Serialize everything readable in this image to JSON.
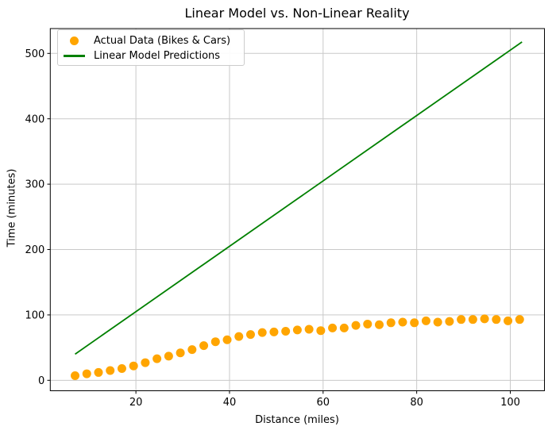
{
  "chart_data": {
    "type": "scatter",
    "title": "Linear Model vs. Non-Linear Reality",
    "xlabel": "Distance (miles)",
    "ylabel": "Time (minutes)",
    "xlim": [
      1.7,
      107.3
    ],
    "ylim": [
      -16,
      538
    ],
    "xticks": [
      20,
      40,
      60,
      80,
      100
    ],
    "yticks": [
      0,
      100,
      200,
      300,
      400,
      500
    ],
    "grid": true,
    "grid_color": "#c9c9c9",
    "spine_color": "#000000",
    "legend_position": "upper-left",
    "series": [
      {
        "name": "Actual Data (Bikes & Cars)",
        "type": "scatter",
        "color": "#FFA500",
        "marker": "circle",
        "marker_radius": 5.5,
        "x": [
          7,
          9.5,
          12,
          14.5,
          17,
          19.5,
          22,
          24.5,
          27,
          29.5,
          32,
          34.5,
          37,
          39.5,
          42,
          44.5,
          47,
          49.5,
          52,
          54.5,
          57,
          59.5,
          62,
          64.5,
          67,
          69.5,
          72,
          74.5,
          77,
          79.5,
          82,
          84.5,
          87,
          89.5,
          92,
          94.5,
          97,
          99.5,
          102
        ],
        "y": [
          7,
          10,
          12,
          15,
          18,
          22,
          27,
          33,
          37,
          42,
          47,
          53,
          59,
          62,
          67,
          70,
          73,
          74,
          75,
          77,
          78,
          76,
          80,
          80,
          84,
          86,
          85,
          88,
          89,
          88,
          91,
          89,
          90,
          93,
          93,
          94,
          93,
          91,
          93
        ]
      },
      {
        "name": "Linear Model Predictions",
        "type": "line",
        "color": "#008000",
        "line_width": 1.8,
        "x": [
          7,
          102.5
        ],
        "y": [
          40,
          517.5
        ]
      }
    ]
  }
}
